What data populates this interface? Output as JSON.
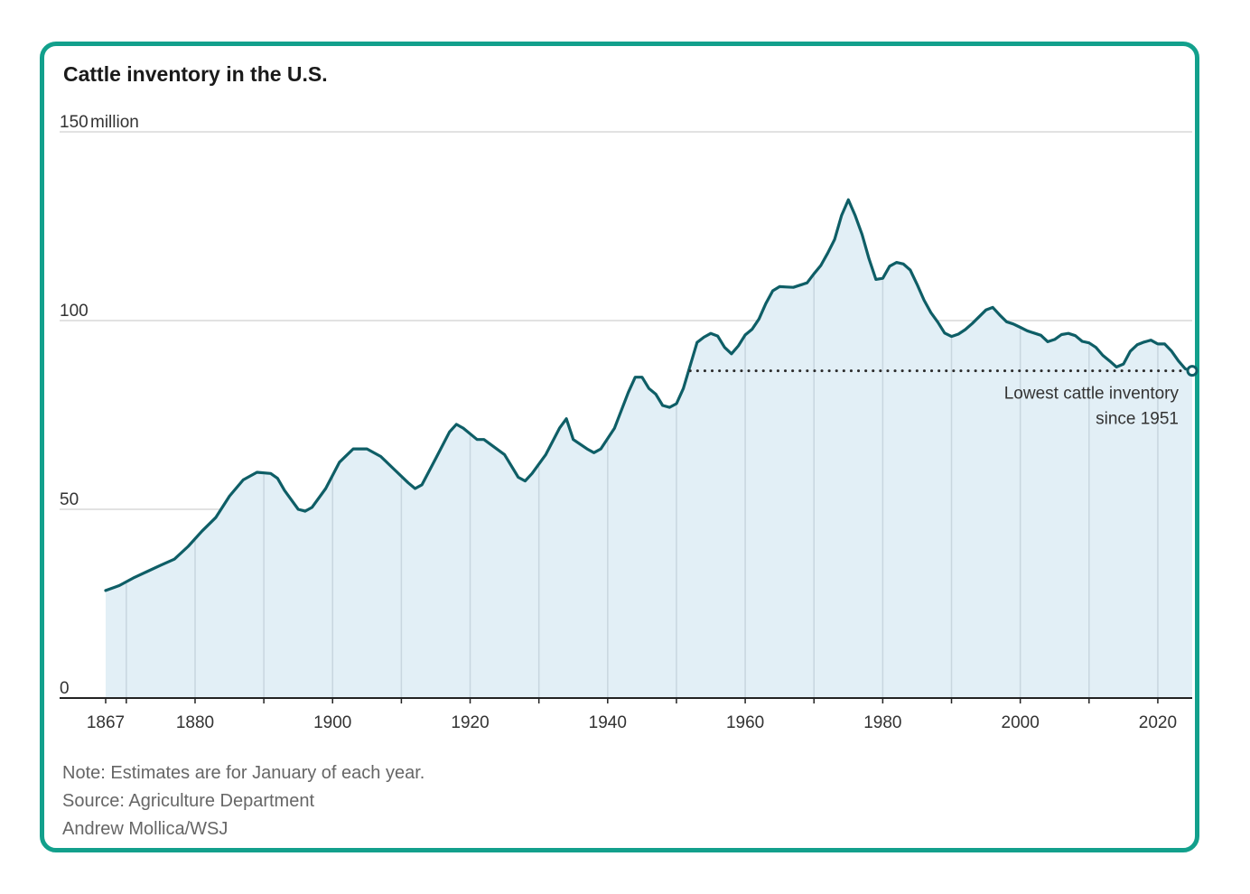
{
  "chart_data": {
    "type": "area",
    "title": "Cattle inventory in the U.S.",
    "unit_label": "million",
    "xlabel": "",
    "ylabel": "",
    "xlim": [
      1867,
      2025
    ],
    "ylim": [
      0,
      150
    ],
    "y_ticks": [
      {
        "value": 150,
        "label": "150"
      },
      {
        "value": 100,
        "label": "100"
      },
      {
        "value": 50,
        "label": "50"
      },
      {
        "value": 0,
        "label": "0"
      }
    ],
    "x_ticks": [
      {
        "value": 1867,
        "label": "1867"
      },
      {
        "value": 1880,
        "label": "1880"
      },
      {
        "value": 1900,
        "label": "1900"
      },
      {
        "value": 1920,
        "label": "1920"
      },
      {
        "value": 1940,
        "label": "1940"
      },
      {
        "value": 1960,
        "label": "1960"
      },
      {
        "value": 1980,
        "label": "1980"
      },
      {
        "value": 2000,
        "label": "2000"
      },
      {
        "value": 2020,
        "label": "2020"
      }
    ],
    "decade_gridlines": [
      1870,
      1890,
      1910,
      1930,
      1950,
      1970,
      1990,
      2010
    ],
    "series": [
      {
        "name": "Cattle inventory (millions)",
        "x": [
          1867,
          1869,
          1871,
          1873,
          1875,
          1877,
          1879,
          1881,
          1883,
          1885,
          1887,
          1889,
          1891,
          1892,
          1893,
          1895,
          1896,
          1897,
          1899,
          1901,
          1903,
          1905,
          1907,
          1909,
          1911,
          1912,
          1913,
          1915,
          1917,
          1918,
          1919,
          1921,
          1922,
          1925,
          1927,
          1928,
          1929,
          1931,
          1933,
          1934,
          1935,
          1937,
          1938,
          1939,
          1941,
          1943,
          1944,
          1945,
          1946,
          1947,
          1948,
          1949,
          1950,
          1951,
          1953,
          1954,
          1955,
          1956,
          1957,
          1958,
          1959,
          1960,
          1961,
          1962,
          1963,
          1964,
          1965,
          1966,
          1967,
          1968,
          1969,
          1970,
          1971,
          1972,
          1973,
          1974,
          1975,
          1976,
          1977,
          1978,
          1979,
          1980,
          1981,
          1982,
          1983,
          1984,
          1985,
          1986,
          1987,
          1988,
          1989,
          1990,
          1991,
          1992,
          1993,
          1994,
          1995,
          1996,
          1997,
          1998,
          1999,
          2000,
          2001,
          2002,
          2003,
          2004,
          2005,
          2006,
          2007,
          2008,
          2009,
          2010,
          2011,
          2012,
          2013,
          2014,
          2015,
          2016,
          2017,
          2018,
          2019,
          2020,
          2021,
          2022,
          2023,
          2024,
          2025
        ],
        "values": [
          28.5,
          29.8,
          31.8,
          33.5,
          35.2,
          36.8,
          40.2,
          44.2,
          47.8,
          53.5,
          57.8,
          59.8,
          59.5,
          58.2,
          55.0,
          50.0,
          49.5,
          50.5,
          55.5,
          62.5,
          66.0,
          66.0,
          64.0,
          60.5,
          57.0,
          55.5,
          56.5,
          63.5,
          70.5,
          72.5,
          71.5,
          68.5,
          68.5,
          64.5,
          58.5,
          57.5,
          59.5,
          64.5,
          71.5,
          74.0,
          68.5,
          66.0,
          65.0,
          66.0,
          71.5,
          81.0,
          85.0,
          85.0,
          82.0,
          80.5,
          77.5,
          77.0,
          78.0,
          82.0,
          94.2,
          95.6,
          96.6,
          95.9,
          92.9,
          91.2,
          93.3,
          96.2,
          97.7,
          100.4,
          104.5,
          107.9,
          109.0,
          108.9,
          108.8,
          109.4,
          110.0,
          112.4,
          114.6,
          117.9,
          121.5,
          127.8,
          132.0,
          127.8,
          122.8,
          116.4,
          110.9,
          111.2,
          114.4,
          115.4,
          115.0,
          113.4,
          109.6,
          105.4,
          102.1,
          99.6,
          96.7,
          95.8,
          96.4,
          97.6,
          99.2,
          101.0,
          102.8,
          103.5,
          101.5,
          99.7,
          99.1,
          98.2,
          97.3,
          96.7,
          96.1,
          94.4,
          95.0,
          96.3,
          96.6,
          96.0,
          94.5,
          94.1,
          92.9,
          90.8,
          89.3,
          87.7,
          88.5,
          91.9,
          93.6,
          94.3,
          94.8,
          93.8,
          93.8,
          91.9,
          89.3,
          87.2,
          86.7
        ]
      }
    ],
    "reference_line": {
      "y": 86.7,
      "from_x": 1952,
      "to_x": 2025,
      "style": "dotted"
    },
    "annotation": {
      "line1": "Lowest cattle inventory",
      "line2": "since 1951",
      "x": 2025,
      "y": 86.7
    }
  },
  "notes": {
    "note": "Note: Estimates are for January of each year.",
    "source": "Source: Agriculture Department",
    "credit": "Andrew Mollica/WSJ"
  },
  "colors": {
    "line": "#0e5e66",
    "area": "#e2eff6",
    "frame": "#12a08c",
    "grid": "#d9d9d9",
    "decade_grid": "#c8d6df"
  }
}
